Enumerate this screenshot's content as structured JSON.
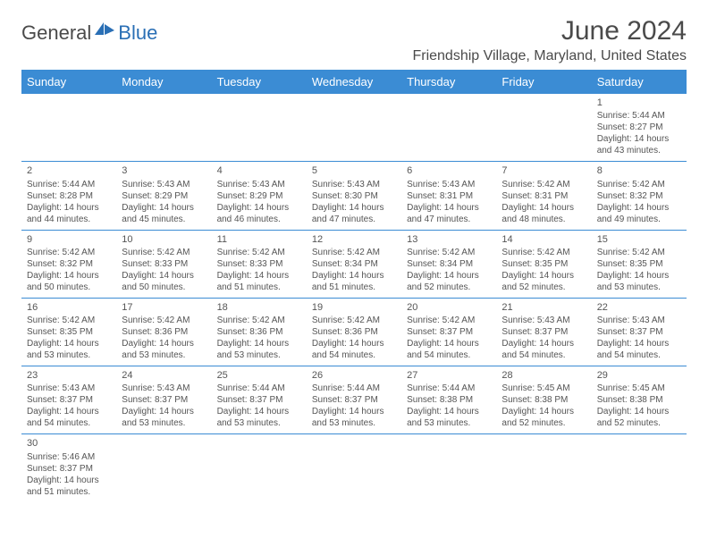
{
  "logo": {
    "general": "General",
    "blue": "Blue"
  },
  "title": "June 2024",
  "location": "Friendship Village, Maryland, United States",
  "colors": {
    "header_bg": "#3b8cd4",
    "header_text": "#ffffff",
    "border": "#3b8cd4",
    "text": "#555555",
    "title": "#4a4a4a",
    "logo_blue": "#2a6fb5"
  },
  "dayHeaders": [
    "Sunday",
    "Monday",
    "Tuesday",
    "Wednesday",
    "Thursday",
    "Friday",
    "Saturday"
  ],
  "weeks": [
    [
      null,
      null,
      null,
      null,
      null,
      null,
      {
        "num": "1",
        "sunrise": "Sunrise: 5:44 AM",
        "sunset": "Sunset: 8:27 PM",
        "daylight1": "Daylight: 14 hours",
        "daylight2": "and 43 minutes."
      }
    ],
    [
      {
        "num": "2",
        "sunrise": "Sunrise: 5:44 AM",
        "sunset": "Sunset: 8:28 PM",
        "daylight1": "Daylight: 14 hours",
        "daylight2": "and 44 minutes."
      },
      {
        "num": "3",
        "sunrise": "Sunrise: 5:43 AM",
        "sunset": "Sunset: 8:29 PM",
        "daylight1": "Daylight: 14 hours",
        "daylight2": "and 45 minutes."
      },
      {
        "num": "4",
        "sunrise": "Sunrise: 5:43 AM",
        "sunset": "Sunset: 8:29 PM",
        "daylight1": "Daylight: 14 hours",
        "daylight2": "and 46 minutes."
      },
      {
        "num": "5",
        "sunrise": "Sunrise: 5:43 AM",
        "sunset": "Sunset: 8:30 PM",
        "daylight1": "Daylight: 14 hours",
        "daylight2": "and 47 minutes."
      },
      {
        "num": "6",
        "sunrise": "Sunrise: 5:43 AM",
        "sunset": "Sunset: 8:31 PM",
        "daylight1": "Daylight: 14 hours",
        "daylight2": "and 47 minutes."
      },
      {
        "num": "7",
        "sunrise": "Sunrise: 5:42 AM",
        "sunset": "Sunset: 8:31 PM",
        "daylight1": "Daylight: 14 hours",
        "daylight2": "and 48 minutes."
      },
      {
        "num": "8",
        "sunrise": "Sunrise: 5:42 AM",
        "sunset": "Sunset: 8:32 PM",
        "daylight1": "Daylight: 14 hours",
        "daylight2": "and 49 minutes."
      }
    ],
    [
      {
        "num": "9",
        "sunrise": "Sunrise: 5:42 AM",
        "sunset": "Sunset: 8:32 PM",
        "daylight1": "Daylight: 14 hours",
        "daylight2": "and 50 minutes."
      },
      {
        "num": "10",
        "sunrise": "Sunrise: 5:42 AM",
        "sunset": "Sunset: 8:33 PM",
        "daylight1": "Daylight: 14 hours",
        "daylight2": "and 50 minutes."
      },
      {
        "num": "11",
        "sunrise": "Sunrise: 5:42 AM",
        "sunset": "Sunset: 8:33 PM",
        "daylight1": "Daylight: 14 hours",
        "daylight2": "and 51 minutes."
      },
      {
        "num": "12",
        "sunrise": "Sunrise: 5:42 AM",
        "sunset": "Sunset: 8:34 PM",
        "daylight1": "Daylight: 14 hours",
        "daylight2": "and 51 minutes."
      },
      {
        "num": "13",
        "sunrise": "Sunrise: 5:42 AM",
        "sunset": "Sunset: 8:34 PM",
        "daylight1": "Daylight: 14 hours",
        "daylight2": "and 52 minutes."
      },
      {
        "num": "14",
        "sunrise": "Sunrise: 5:42 AM",
        "sunset": "Sunset: 8:35 PM",
        "daylight1": "Daylight: 14 hours",
        "daylight2": "and 52 minutes."
      },
      {
        "num": "15",
        "sunrise": "Sunrise: 5:42 AM",
        "sunset": "Sunset: 8:35 PM",
        "daylight1": "Daylight: 14 hours",
        "daylight2": "and 53 minutes."
      }
    ],
    [
      {
        "num": "16",
        "sunrise": "Sunrise: 5:42 AM",
        "sunset": "Sunset: 8:35 PM",
        "daylight1": "Daylight: 14 hours",
        "daylight2": "and 53 minutes."
      },
      {
        "num": "17",
        "sunrise": "Sunrise: 5:42 AM",
        "sunset": "Sunset: 8:36 PM",
        "daylight1": "Daylight: 14 hours",
        "daylight2": "and 53 minutes."
      },
      {
        "num": "18",
        "sunrise": "Sunrise: 5:42 AM",
        "sunset": "Sunset: 8:36 PM",
        "daylight1": "Daylight: 14 hours",
        "daylight2": "and 53 minutes."
      },
      {
        "num": "19",
        "sunrise": "Sunrise: 5:42 AM",
        "sunset": "Sunset: 8:36 PM",
        "daylight1": "Daylight: 14 hours",
        "daylight2": "and 54 minutes."
      },
      {
        "num": "20",
        "sunrise": "Sunrise: 5:42 AM",
        "sunset": "Sunset: 8:37 PM",
        "daylight1": "Daylight: 14 hours",
        "daylight2": "and 54 minutes."
      },
      {
        "num": "21",
        "sunrise": "Sunrise: 5:43 AM",
        "sunset": "Sunset: 8:37 PM",
        "daylight1": "Daylight: 14 hours",
        "daylight2": "and 54 minutes."
      },
      {
        "num": "22",
        "sunrise": "Sunrise: 5:43 AM",
        "sunset": "Sunset: 8:37 PM",
        "daylight1": "Daylight: 14 hours",
        "daylight2": "and 54 minutes."
      }
    ],
    [
      {
        "num": "23",
        "sunrise": "Sunrise: 5:43 AM",
        "sunset": "Sunset: 8:37 PM",
        "daylight1": "Daylight: 14 hours",
        "daylight2": "and 54 minutes."
      },
      {
        "num": "24",
        "sunrise": "Sunrise: 5:43 AM",
        "sunset": "Sunset: 8:37 PM",
        "daylight1": "Daylight: 14 hours",
        "daylight2": "and 53 minutes."
      },
      {
        "num": "25",
        "sunrise": "Sunrise: 5:44 AM",
        "sunset": "Sunset: 8:37 PM",
        "daylight1": "Daylight: 14 hours",
        "daylight2": "and 53 minutes."
      },
      {
        "num": "26",
        "sunrise": "Sunrise: 5:44 AM",
        "sunset": "Sunset: 8:37 PM",
        "daylight1": "Daylight: 14 hours",
        "daylight2": "and 53 minutes."
      },
      {
        "num": "27",
        "sunrise": "Sunrise: 5:44 AM",
        "sunset": "Sunset: 8:38 PM",
        "daylight1": "Daylight: 14 hours",
        "daylight2": "and 53 minutes."
      },
      {
        "num": "28",
        "sunrise": "Sunrise: 5:45 AM",
        "sunset": "Sunset: 8:38 PM",
        "daylight1": "Daylight: 14 hours",
        "daylight2": "and 52 minutes."
      },
      {
        "num": "29",
        "sunrise": "Sunrise: 5:45 AM",
        "sunset": "Sunset: 8:38 PM",
        "daylight1": "Daylight: 14 hours",
        "daylight2": "and 52 minutes."
      }
    ],
    [
      {
        "num": "30",
        "sunrise": "Sunrise: 5:46 AM",
        "sunset": "Sunset: 8:37 PM",
        "daylight1": "Daylight: 14 hours",
        "daylight2": "and 51 minutes."
      },
      null,
      null,
      null,
      null,
      null,
      null
    ]
  ]
}
